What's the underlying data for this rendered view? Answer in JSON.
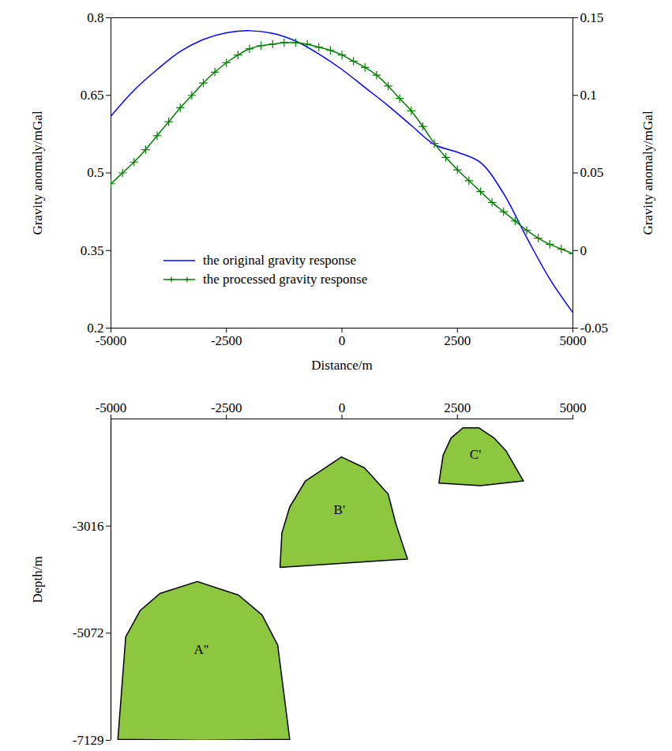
{
  "chart_data": [
    {
      "type": "line",
      "xlabel": "Distance/m",
      "ylabel": "Gravity anomaly/mGal",
      "y2label": "Gravity anomaly/mGal",
      "xlim": [
        -5000,
        5000
      ],
      "xticks": [
        -5000,
        -2500,
        0,
        2500,
        5000
      ],
      "ylim": [
        0.2,
        0.8
      ],
      "yticks": [
        0.2,
        0.35,
        0.5,
        0.65,
        0.8
      ],
      "y2lim": [
        -0.05,
        0.15
      ],
      "y2ticks": [
        -0.05,
        0,
        0.05,
        0.1,
        0.15
      ],
      "legend": "bottom",
      "series": [
        {
          "name": "the original gravity response",
          "color": "#0000ff",
          "line_style": "solid",
          "x": [
            -5000,
            -4500,
            -4000,
            -3500,
            -3000,
            -2500,
            -2000,
            -1500,
            -1000,
            -500,
            0,
            500,
            1000,
            1500,
            2000,
            2500,
            3000,
            3500,
            4000,
            4500,
            5000
          ],
          "values": [
            0.61,
            0.66,
            0.7,
            0.735,
            0.758,
            0.771,
            0.775,
            0.77,
            0.755,
            0.73,
            0.7,
            0.665,
            0.63,
            0.592,
            0.555,
            0.54,
            0.52,
            0.46,
            0.375,
            0.295,
            0.23
          ]
        },
        {
          "name": "the processed gravity response",
          "color": "#007f00",
          "line_style": "solid",
          "marker": "plus",
          "axis": "y2",
          "x": [
            -5000,
            -4750,
            -4500,
            -4250,
            -4000,
            -3750,
            -3500,
            -3250,
            -3000,
            -2750,
            -2500,
            -2250,
            -2000,
            -1750,
            -1500,
            -1250,
            -1000,
            -750,
            -500,
            -250,
            0,
            250,
            500,
            750,
            1000,
            1250,
            1500,
            1750,
            2000,
            2250,
            2500,
            2750,
            3000,
            3250,
            3500,
            3750,
            4000,
            4250,
            4500,
            4750,
            5000
          ],
          "values": [
            0.043,
            0.05,
            0.057,
            0.065,
            0.074,
            0.083,
            0.092,
            0.1,
            0.108,
            0.115,
            0.121,
            0.126,
            0.13,
            0.132,
            0.133,
            0.134,
            0.134,
            0.133,
            0.131,
            0.129,
            0.126,
            0.122,
            0.118,
            0.113,
            0.106,
            0.098,
            0.09,
            0.08,
            0.069,
            0.06,
            0.052,
            0.045,
            0.038,
            0.031,
            0.025,
            0.019,
            0.013,
            0.008,
            0.004,
            0.001,
            -0.002
          ]
        }
      ]
    },
    {
      "type": "polygon",
      "ylabel": "Depth/m",
      "xlim": [
        -5000,
        5000
      ],
      "xticks": [
        -5000,
        -2500,
        0,
        2500,
        5000
      ],
      "ylim": [
        -7129,
        -960
      ],
      "yticks": [
        -3016,
        -5072,
        -7129
      ],
      "color": "#8dc63f",
      "series": [
        {
          "name": "A''",
          "x": [
            -4850,
            -4680,
            -4370,
            -3940,
            -3130,
            -2240,
            -1730,
            -1390,
            -1130,
            -3000
          ],
          "values": [
            -7110,
            -5140,
            -4640,
            -4310,
            -4080,
            -4340,
            -4720,
            -5300,
            -7110,
            -7129
          ]
        },
        {
          "name": "B'",
          "x": [
            -1340,
            -1300,
            -1130,
            -790,
            -10,
            490,
            1000,
            1170,
            1420
          ],
          "values": [
            -3810,
            -3150,
            -2650,
            -2150,
            -1690,
            -1900,
            -2400,
            -2980,
            -3650
          ]
        },
        {
          "name": "C'",
          "x": [
            2100,
            2190,
            2360,
            2620,
            2960,
            3300,
            3550,
            3930,
            3000
          ],
          "values": [
            -2190,
            -1660,
            -1330,
            -1130,
            -1130,
            -1330,
            -1570,
            -2150,
            -2240
          ]
        }
      ]
    }
  ]
}
